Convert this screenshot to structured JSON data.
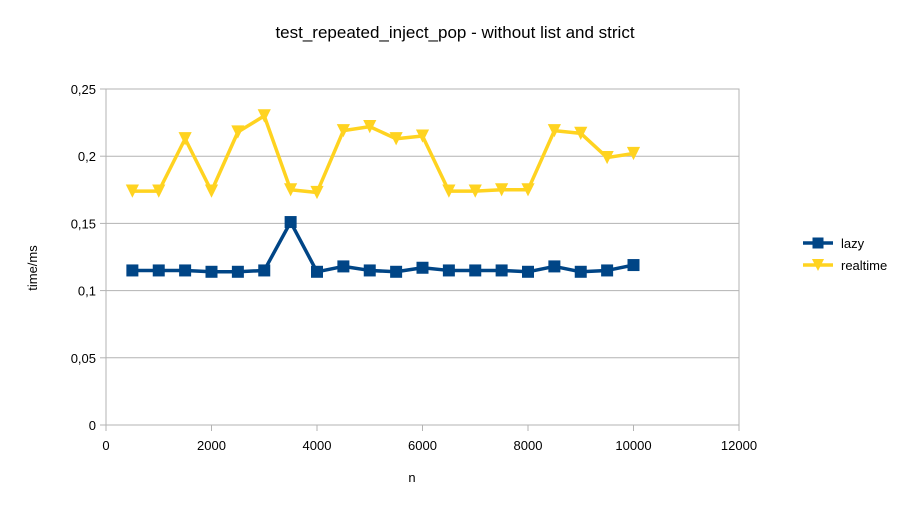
{
  "chart_data": {
    "type": "line",
    "title": "test_repeated_inject_pop - without list and strict",
    "xlabel": "n",
    "ylabel": "time/ms",
    "xlim": [
      0,
      12000
    ],
    "ylim": [
      0,
      0.25
    ],
    "x_ticks": [
      0,
      2000,
      4000,
      6000,
      8000,
      10000,
      12000
    ],
    "x_tick_labels": [
      "0",
      "2000",
      "4000",
      "6000",
      "8000",
      "10000",
      "12000"
    ],
    "y_ticks": [
      0,
      0.05,
      0.1,
      0.15,
      0.2,
      0.25
    ],
    "y_tick_labels": [
      "0",
      "0,05",
      "0,1",
      "0,15",
      "0,2",
      "0,25"
    ],
    "grid": "horizontal",
    "legend_position": "right",
    "x": [
      500,
      1000,
      1500,
      2000,
      2500,
      3000,
      3500,
      4000,
      4500,
      5000,
      5500,
      6000,
      6500,
      7000,
      7500,
      8000,
      8500,
      9000,
      9500,
      10000
    ],
    "series": [
      {
        "name": "lazy",
        "color": "#004586",
        "marker": "square",
        "values": [
          0.115,
          0.115,
          0.115,
          0.114,
          0.114,
          0.115,
          0.151,
          0.114,
          0.118,
          0.115,
          0.114,
          0.117,
          0.115,
          0.115,
          0.115,
          0.114,
          0.118,
          0.114,
          0.115,
          0.119
        ]
      },
      {
        "name": "realtime",
        "color": "#ffd320",
        "marker": "triangle-down",
        "values": [
          0.174,
          0.174,
          0.213,
          0.174,
          0.218,
          0.23,
          0.175,
          0.173,
          0.219,
          0.222,
          0.213,
          0.215,
          0.174,
          0.174,
          0.175,
          0.175,
          0.219,
          0.217,
          0.199,
          0.202
        ]
      }
    ]
  }
}
